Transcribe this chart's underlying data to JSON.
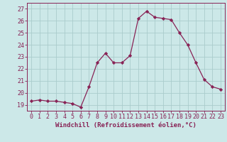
{
  "hours": [
    0,
    1,
    2,
    3,
    4,
    5,
    6,
    7,
    8,
    9,
    10,
    11,
    12,
    13,
    14,
    15,
    16,
    17,
    18,
    19,
    20,
    21,
    22,
    23
  ],
  "values": [
    19.3,
    19.4,
    19.3,
    19.3,
    19.2,
    19.1,
    18.8,
    20.5,
    22.5,
    23.3,
    22.5,
    22.5,
    23.1,
    26.2,
    26.8,
    26.3,
    26.2,
    26.1,
    25.0,
    24.0,
    22.5,
    21.1,
    20.5,
    20.3
  ],
  "line_color": "#882255",
  "marker": "D",
  "marker_size": 2.2,
  "bg_color": "#cce8e8",
  "grid_color": "#aacccc",
  "xlabel": "Windchill (Refroidissement éolien,°C)",
  "ylim": [
    18.5,
    27.5
  ],
  "xlim": [
    -0.5,
    23.5
  ],
  "yticks": [
    19,
    20,
    21,
    22,
    23,
    24,
    25,
    26,
    27
  ],
  "label_fontsize": 6.5,
  "tick_fontsize": 6.0
}
